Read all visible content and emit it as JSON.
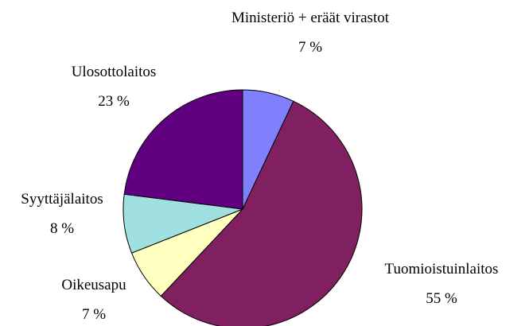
{
  "chart_data": {
    "type": "pie",
    "categories": [
      "Ministeriö + eräät virastot",
      "Tuomioistuinlaitos",
      "Oikeusapu",
      "Syyttäjälaitos",
      "Ulosottolaitos"
    ],
    "values": [
      7,
      55,
      7,
      8,
      23
    ],
    "value_labels": [
      "7 %",
      "55 %",
      "7 %",
      "8 %",
      "23 %"
    ],
    "colors": [
      "#8080ff",
      "#802060",
      "#ffffc0",
      "#a0e0e0",
      "#600080"
    ]
  }
}
